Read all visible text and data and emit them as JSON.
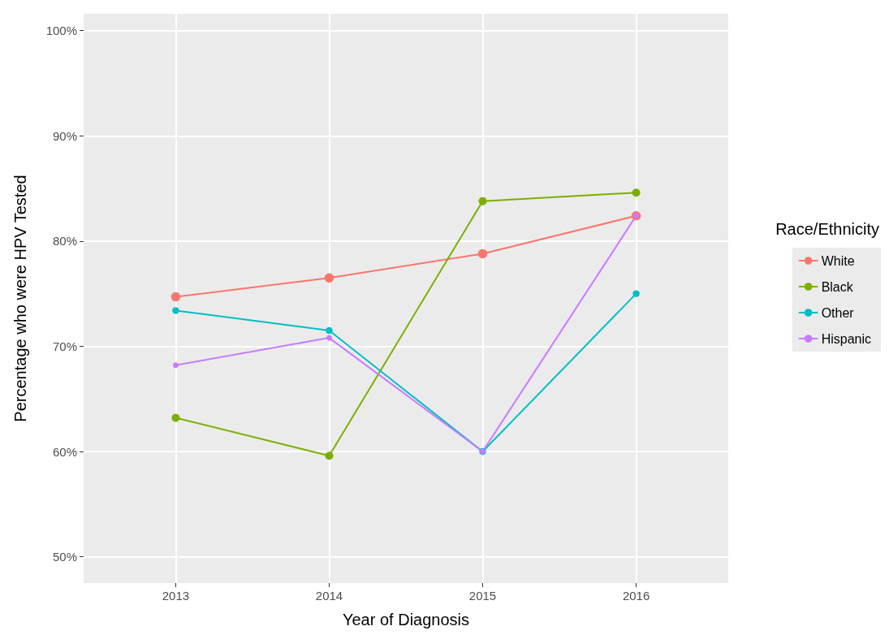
{
  "chart_data": {
    "type": "line",
    "xlabel": "Year of Diagnosis",
    "ylabel": "Percentage who were HPV Tested",
    "legend_title": "Race/Ethnicity",
    "x": [
      2013,
      2014,
      2015,
      2016
    ],
    "xlim": [
      2012.4,
      2016.6
    ],
    "xticks": [
      2013,
      2014,
      2015,
      2016
    ],
    "ylim": [
      47.5,
      101.6
    ],
    "yticks": [
      {
        "value": 50,
        "label": "50%"
      },
      {
        "value": 60,
        "label": "60%"
      },
      {
        "value": 70,
        "label": "70%"
      },
      {
        "value": 80,
        "label": "80%"
      },
      {
        "value": 90,
        "label": "90%"
      },
      {
        "value": 100,
        "label": "100%"
      }
    ],
    "series": [
      {
        "name": "White",
        "color": "#f8766d",
        "values": [
          74.7,
          76.5,
          78.8,
          82.4
        ]
      },
      {
        "name": "Black",
        "color": "#7cae00",
        "values": [
          63.2,
          59.6,
          83.8,
          84.6
        ]
      },
      {
        "name": "Other",
        "color": "#00bfc4",
        "values": [
          73.4,
          71.5,
          60.0,
          75.0
        ]
      },
      {
        "name": "Hispanic",
        "color": "#c77cff",
        "values": [
          68.2,
          70.8,
          60.0,
          82.4
        ]
      }
    ],
    "grid": true,
    "legend": "right",
    "marker": "circle",
    "line_style": "solid"
  }
}
